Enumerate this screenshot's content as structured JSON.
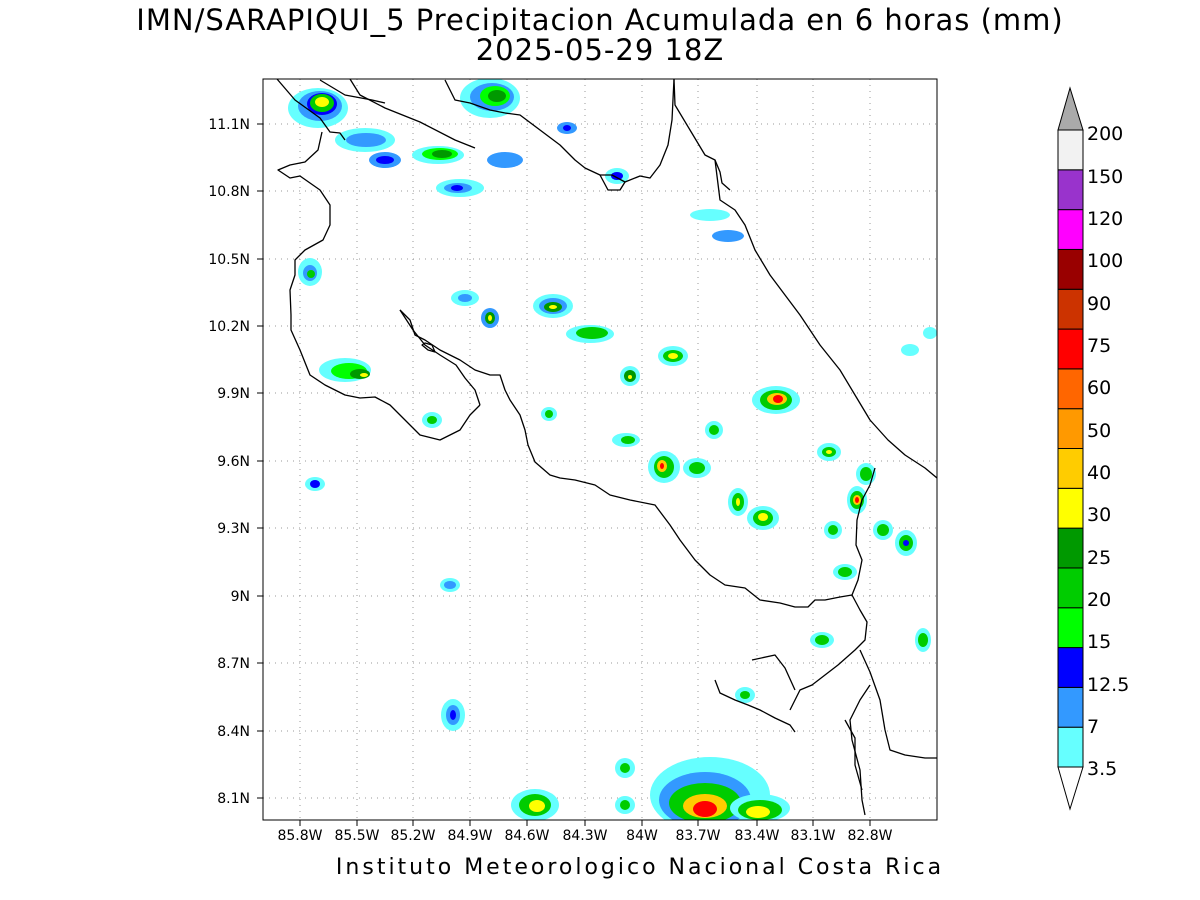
{
  "title": "IMN/SARAPIQUI_5 Precipitacion Acumulada en 6 horas (mm)",
  "subtitle": "2025-05-29 18Z",
  "footer": "Instituto Meteorologico Nacional Costa Rica",
  "lon_ticks": [
    "85.8W",
    "85.5W",
    "85.2W",
    "84.9W",
    "84.6W",
    "84.3W",
    "84W",
    "83.7W",
    "83.4W",
    "83.1W",
    "82.8W"
  ],
  "lat_ticks": [
    "11.1N",
    "10.8N",
    "10.5N",
    "10.2N",
    "9.9N",
    "9.6N",
    "9.3N",
    "9N",
    "8.7N",
    "8.4N",
    "8.1N"
  ],
  "colorbar": {
    "labels": [
      "3.5",
      "7",
      "12.5",
      "15",
      "20",
      "25",
      "30",
      "40",
      "50",
      "60",
      "75",
      "90",
      "100",
      "120",
      "150",
      "200"
    ],
    "colors": [
      "#66ffff",
      "#3399ff",
      "#0000ff",
      "#00ff00",
      "#00cc00",
      "#009900",
      "#ffff00",
      "#ffcc00",
      "#ff9900",
      "#ff6600",
      "#ff0000",
      "#cc3300",
      "#990000",
      "#ff00ff",
      "#9933cc",
      "#f2f2f2",
      "#aaaaaa"
    ]
  }
}
